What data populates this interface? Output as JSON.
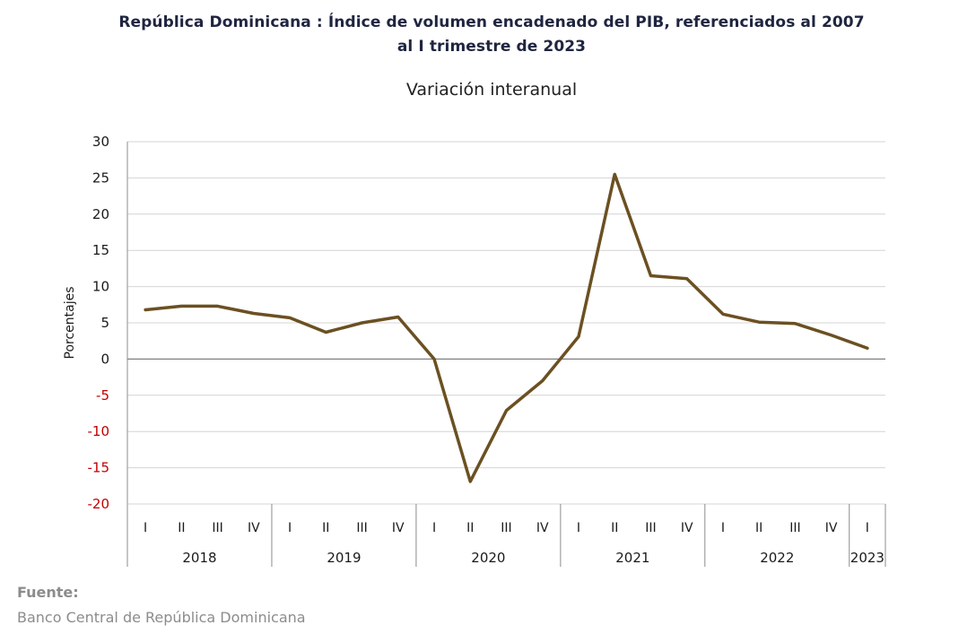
{
  "header": {
    "title_line1": "República Dominicana : Índice de volumen encadenado del PIB, referenciados al 2007",
    "title_line2": "al I trimestre de 2023",
    "subtitle": "Variación interanual"
  },
  "source": {
    "label": "Fuente:",
    "text": "Banco Central de República Dominicana"
  },
  "colors": {
    "line": "#6b5022",
    "grid": "#d4d4d4",
    "negative_tick": "#c00000",
    "axis_text": "#1a1a1a"
  },
  "chart_data": {
    "type": "line",
    "title": "República Dominicana : Índice de volumen encadenado del PIB, referenciados al 2007 al I trimestre de 2023",
    "subtitle": "Variación interanual",
    "ylabel": "Porcentajes",
    "xlabel": "",
    "ylim": [
      -20,
      30
    ],
    "yticks": [
      30,
      25,
      20,
      15,
      10,
      5,
      0,
      -5,
      -10,
      -15,
      -20
    ],
    "grid": true,
    "legend": "none",
    "groups": [
      {
        "year": "2018",
        "quarters": [
          "I",
          "II",
          "III",
          "IV"
        ]
      },
      {
        "year": "2019",
        "quarters": [
          "I",
          "II",
          "III",
          "IV"
        ]
      },
      {
        "year": "2020",
        "quarters": [
          "I",
          "II",
          "III",
          "IV"
        ]
      },
      {
        "year": "2021",
        "quarters": [
          "I",
          "II",
          "III",
          "IV"
        ]
      },
      {
        "year": "2022",
        "quarters": [
          "I",
          "II",
          "III",
          "IV"
        ]
      },
      {
        "year": "2023",
        "quarters": [
          "I"
        ]
      }
    ],
    "values": [
      6.8,
      7.3,
      7.3,
      6.3,
      5.7,
      3.7,
      5.0,
      5.8,
      0.0,
      -16.9,
      -7.1,
      -3.0,
      3.1,
      25.5,
      11.5,
      11.1,
      6.2,
      5.1,
      4.9,
      3.3,
      1.5
    ]
  }
}
